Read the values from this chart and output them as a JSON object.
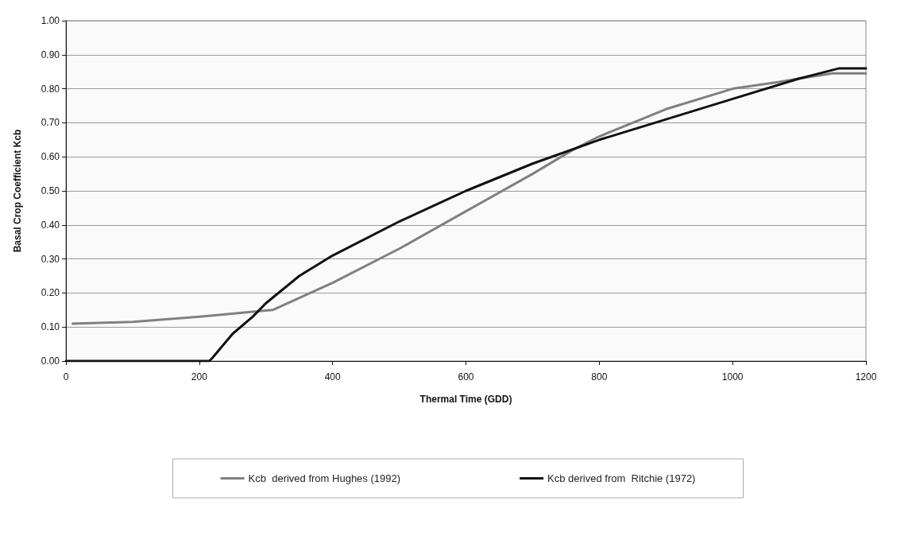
{
  "chart_data": {
    "type": "line",
    "xlabel": "Thermal Time (GDD)",
    "ylabel": "Basal Crop Coefficient Kcb",
    "xlim": [
      0,
      1200
    ],
    "xticks": [
      0,
      200,
      400,
      600,
      800,
      1000,
      1200
    ],
    "ylim": [
      0,
      1
    ],
    "yticks": [
      {
        "value": 0,
        "label": "0.00"
      },
      {
        "value": 0.1,
        "label": "0.10"
      },
      {
        "value": 0.2,
        "label": "0.20"
      },
      {
        "value": 0.3,
        "label": "0.30"
      },
      {
        "value": 0.4,
        "label": "0.40"
      },
      {
        "value": 0.5,
        "label": "0.50"
      },
      {
        "value": 0.6,
        "label": "0.60"
      },
      {
        "value": 0.7,
        "label": "0.70"
      },
      {
        "value": 0.8,
        "label": "0.80"
      },
      {
        "value": 0.9,
        "label": "0.90"
      },
      {
        "value": 1,
        "label": "1.00"
      }
    ],
    "grid": "y",
    "legend": "bottom",
    "marker": "none",
    "series": [
      {
        "name": "Kcb  derived from Hughes (1992)",
        "color": "#808080",
        "x": [
          10,
          100,
          200,
          280,
          310,
          400,
          500,
          600,
          700,
          760,
          800,
          900,
          1000,
          1070,
          1100,
          1150,
          1200
        ],
        "values": [
          0.11,
          0.115,
          0.13,
          0.145,
          0.15,
          0.23,
          0.33,
          0.44,
          0.55,
          0.62,
          0.66,
          0.74,
          0.8,
          0.82,
          0.83,
          0.845,
          0.845
        ]
      },
      {
        "name": "Kcb derived from  Ritchie (1972)",
        "color": "#111111",
        "x": [
          0,
          215,
          220,
          250,
          280,
          300,
          350,
          400,
          500,
          600,
          700,
          800,
          900,
          1000,
          1100,
          1160,
          1200
        ],
        "values": [
          0,
          0,
          0.01,
          0.08,
          0.13,
          0.17,
          0.25,
          0.31,
          0.41,
          0.5,
          0.58,
          0.65,
          0.71,
          0.77,
          0.83,
          0.86,
          0.86
        ]
      }
    ]
  }
}
